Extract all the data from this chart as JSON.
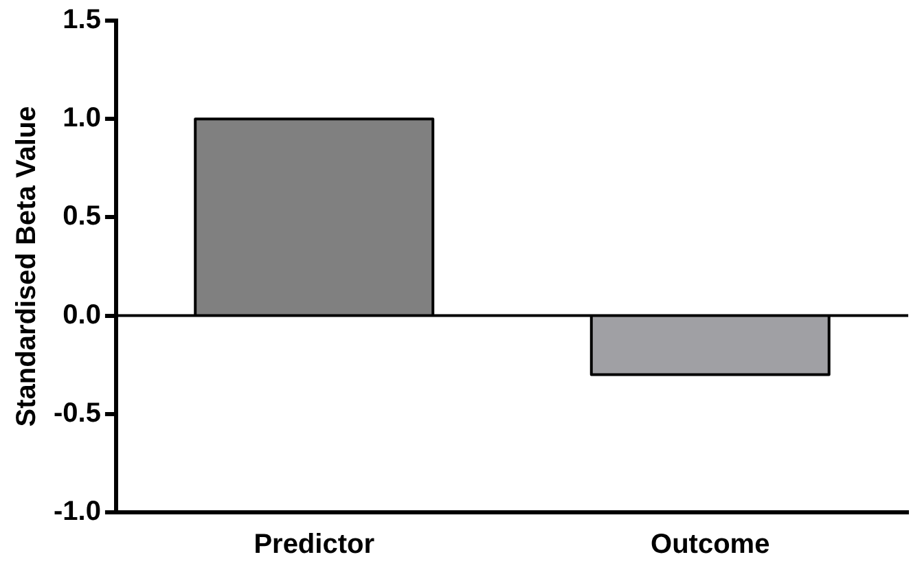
{
  "chart_data": {
    "type": "bar",
    "ylabel": "Standardised Beta Value",
    "categories": [
      "Predictor",
      "Outcome"
    ],
    "values": [
      1.0,
      -0.3
    ],
    "colors": [
      "#808080",
      "#a0a0a4"
    ],
    "ylim": [
      -1.0,
      1.5
    ],
    "yticks": [
      {
        "value": -1,
        "label": "-1.0"
      },
      {
        "value": -0.5,
        "label": "-0.5"
      },
      {
        "value": 0,
        "label": "0.0"
      },
      {
        "value": 0.5,
        "label": "0.5"
      },
      {
        "value": 1,
        "label": "1.0"
      },
      {
        "value": 1.5,
        "label": "1.5"
      }
    ],
    "ref_lines": [
      {
        "axis": "y",
        "value": 0,
        "color": "#000000"
      }
    ],
    "grid": false,
    "legend": false
  }
}
